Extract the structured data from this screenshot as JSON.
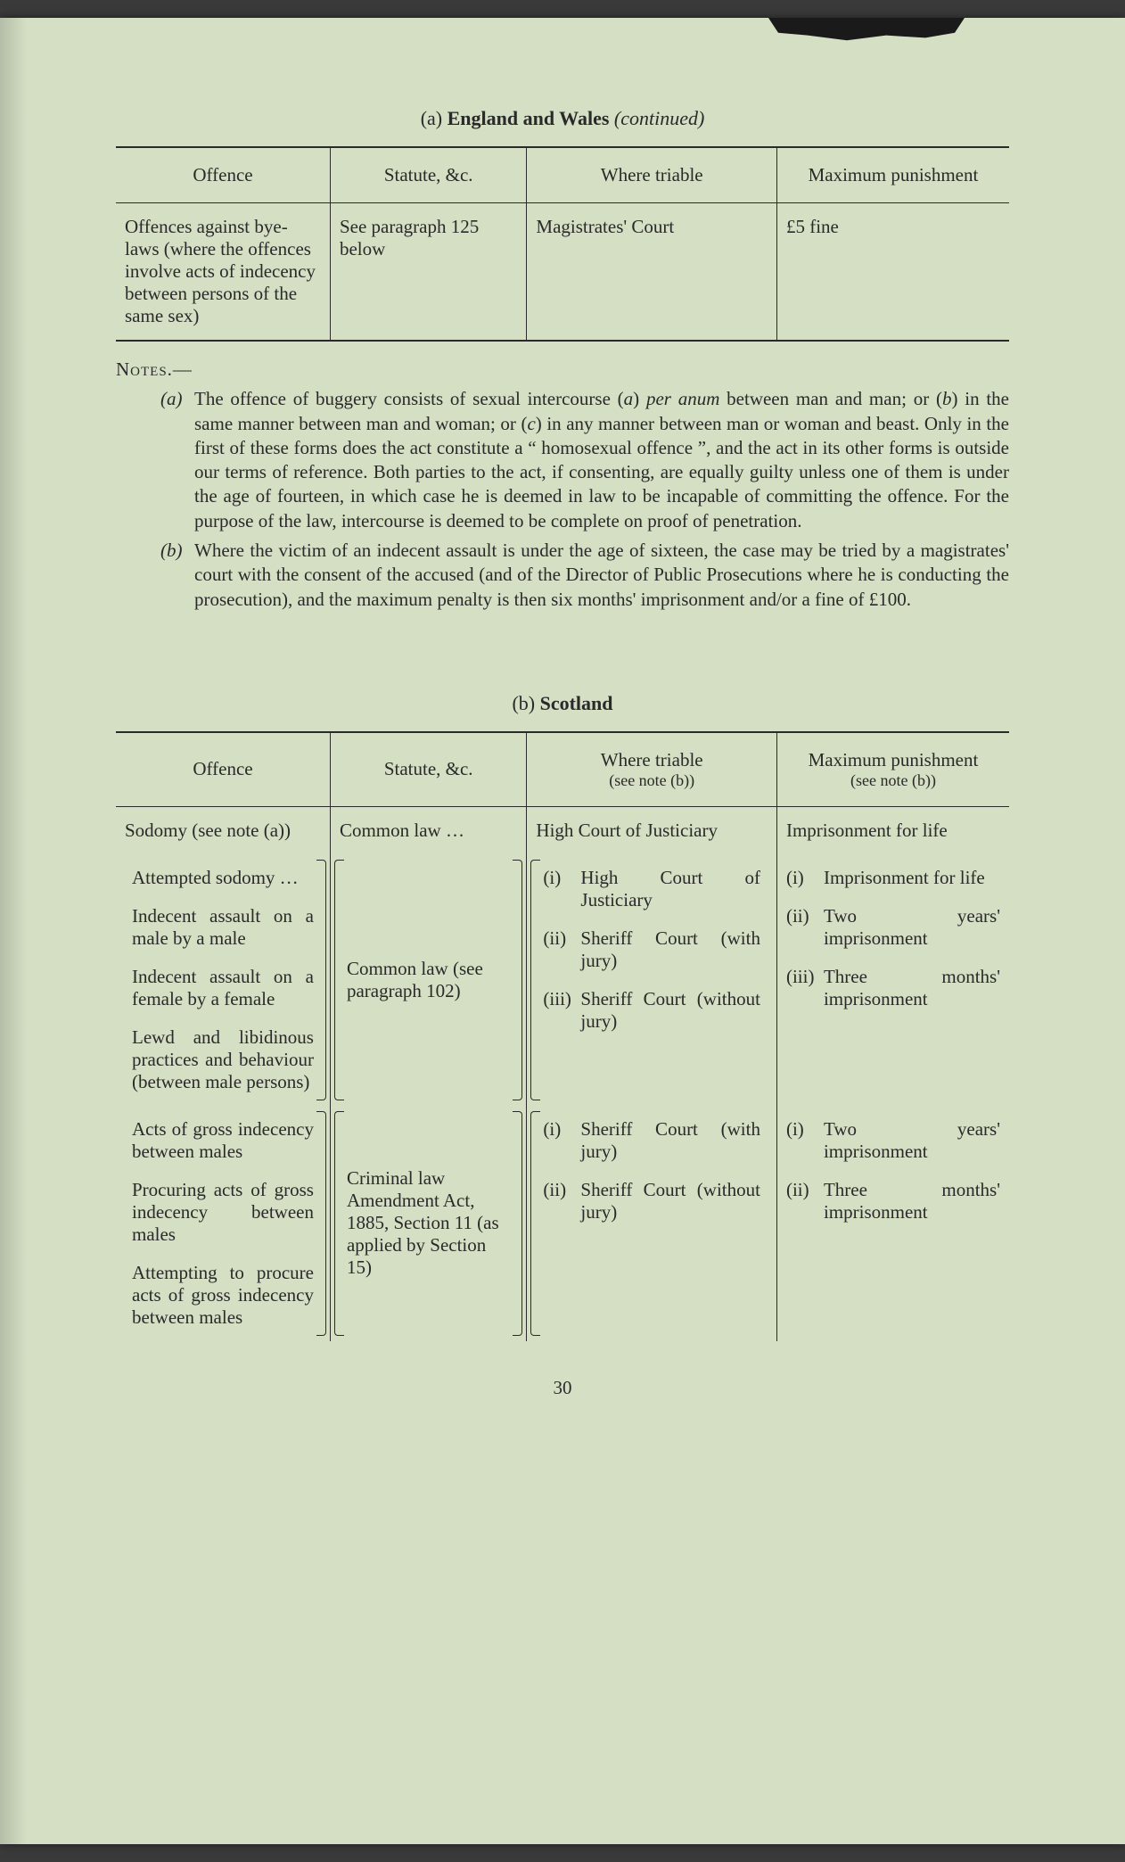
{
  "section_a": {
    "title_prefix": "(a) ",
    "title_bold": "England and Wales ",
    "title_italic": "(continued)",
    "columns": [
      "Offence",
      "Statute, &c.",
      "Where triable",
      "Maximum punishment"
    ],
    "row": {
      "offence": "Offences against bye-laws (where the offences involve acts of indecency between persons of the same sex)",
      "statute": "See paragraph 125 below",
      "where": "Magistrates' Court",
      "punishment": "£5 fine"
    }
  },
  "notes": {
    "heading": "Notes.—",
    "a_marker": "(a)",
    "a_text_1": "The offence of buggery consists of sexual intercourse (",
    "a_ital_1": "a",
    "a_text_2": ") ",
    "a_ital_2": "per anum",
    "a_text_3": " between man and man; or (",
    "a_ital_3": "b",
    "a_text_4": ") in the same manner between man and woman; or (",
    "a_ital_4": "c",
    "a_text_5": ") in any manner between man or woman and beast. Only in the first of these forms does the act constitute a “ homosexual offence ”, and the act in its other forms is outside our terms of reference. Both parties to the act, if consenting, are equally guilty unless one of them is under the age of fourteen, in which case he is deemed in law to be incapable of committing the offence. For the purpose of the law, intercourse is deemed to be complete on proof of penetration.",
    "b_marker": "(b)",
    "b_text": "Where the victim of an indecent assault is under the age of sixteen, the case may be tried by a magistrates' court with the consent of the accused (and of the Director of Public Prosecutions where he is conducting the prosecution), and the maximum penalty is then six months' imprisonment and/or a fine of £100."
  },
  "section_b": {
    "title_prefix": "(b) ",
    "title_bold": "Scotland",
    "columns": {
      "c1": "Offence",
      "c2": "Statute, &c.",
      "c3_line1": "Where triable",
      "c3_line2": "(see note (b))",
      "c4_line1": "Maximum punishment",
      "c4_line2": "(see note (b))"
    },
    "row1": {
      "offence": "Sodomy (see note (a))",
      "statute": "Common law    …",
      "where": "High Court of Justiciary",
      "punishment": "Imprisonment for life"
    },
    "group2": {
      "offences": [
        "Attempted sodomy …",
        "Indecent assault on a male by a male",
        "Indecent assault on a female by a female",
        "Lewd and libidinous practices and behaviour (between male persons)"
      ],
      "statute": "Common law (see paragraph 102)",
      "where": [
        {
          "num": "(i)",
          "txt": "High Court of Justiciary"
        },
        {
          "num": "(ii)",
          "txt": "Sheriff Court (with jury)"
        },
        {
          "num": "(iii)",
          "txt": "Sheriff Court (without jury)"
        }
      ],
      "punishment": [
        {
          "num": "(i)",
          "txt": "Imprisonment for life"
        },
        {
          "num": "(ii)",
          "txt": "Two years' imprisonment"
        },
        {
          "num": "(iii)",
          "txt": "Three months' imprisonment"
        }
      ]
    },
    "group3": {
      "offences": [
        "Acts of gross indecency between males",
        "Procuring acts of gross indecency between males",
        "Attempting to procure acts of gross indecency between males"
      ],
      "statute": "Criminal law Amendment Act, 1885, Section 11 (as applied by Section 15)",
      "where": [
        {
          "num": "(i)",
          "txt": "Sheriff Court (with jury)"
        },
        {
          "num": "(ii)",
          "txt": "Sheriff Court (without jury)"
        }
      ],
      "punishment": [
        {
          "num": "(i)",
          "txt": "Two years' imprisonment"
        },
        {
          "num": "(ii)",
          "txt": "Three months' imprisonment"
        }
      ]
    }
  },
  "page_number": "30"
}
